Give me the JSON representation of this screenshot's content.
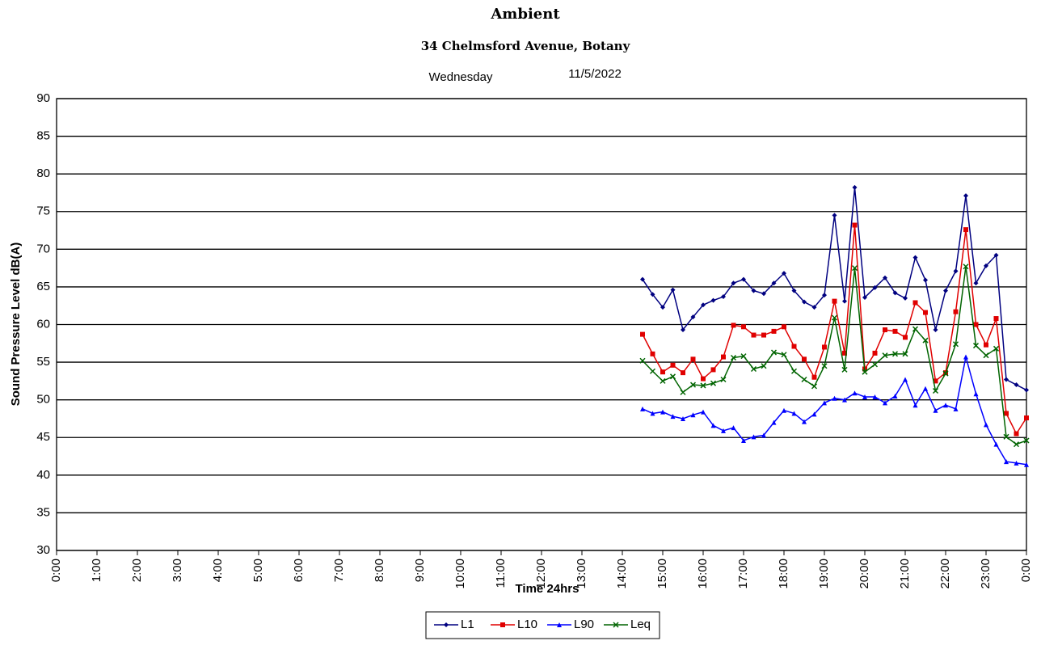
{
  "chart_data": {
    "type": "line",
    "title": "Ambient",
    "subtitle": "34 Chelmsford Avenue, Botany",
    "day": "Wednesday",
    "date": "11/5/2022",
    "xlabel": "Time 24hrs",
    "ylabel": "Sound Pressure Level dB(A)",
    "x": [
      14.5,
      14.75,
      15,
      15.25,
      15.5,
      15.75,
      16,
      16.25,
      16.5,
      16.75,
      17,
      17.25,
      17.5,
      17.75,
      18,
      18.25,
      18.5,
      18.75,
      19,
      19.25,
      19.5,
      19.75,
      20,
      20.25,
      20.5,
      20.75,
      21,
      21.25,
      21.5,
      21.75,
      22,
      22.25,
      22.5,
      22.75,
      23,
      23.25,
      23.5,
      23.75,
      24
    ],
    "series": [
      {
        "name": "L1",
        "color": "#000080",
        "marker": "diamond",
        "values": [
          66,
          64,
          62.3,
          64.6,
          59.3,
          61,
          62.6,
          63.2,
          63.7,
          65.5,
          66,
          64.5,
          64.1,
          65.5,
          66.8,
          64.5,
          63,
          62.3,
          63.9,
          74.5,
          63.1,
          78.2,
          63.6,
          64.9,
          66.2,
          64.2,
          63.5,
          68.9,
          65.9,
          59.3,
          64.5,
          67.1,
          77.1,
          65.5,
          67.8,
          69.2,
          52.7,
          52,
          51.3
        ]
      },
      {
        "name": "L10",
        "color": "#e00000",
        "marker": "square",
        "values": [
          58.7,
          56.1,
          53.7,
          54.6,
          53.6,
          55.4,
          52.8,
          54,
          55.7,
          59.9,
          59.7,
          58.6,
          58.6,
          59.1,
          59.7,
          57.1,
          55.4,
          53,
          57,
          63.1,
          56.2,
          73.2,
          54.1,
          56.2,
          59.3,
          59.1,
          58.3,
          62.9,
          61.6,
          52.5,
          53.6,
          61.7,
          72.6,
          60,
          57.3,
          60.8,
          48.2,
          45.5,
          47.6
        ]
      },
      {
        "name": "L90",
        "color": "#0000ff",
        "marker": "triangle",
        "values": [
          48.8,
          48.2,
          48.4,
          47.8,
          47.5,
          48,
          48.4,
          46.6,
          45.9,
          46.3,
          44.6,
          45.1,
          45.3,
          47,
          48.6,
          48.2,
          47.1,
          48.1,
          49.6,
          50.2,
          50,
          50.9,
          50.4,
          50.4,
          49.6,
          50.5,
          52.7,
          49.3,
          51.5,
          48.6,
          49.3,
          48.8,
          55.7,
          50.8,
          46.7,
          44.1,
          41.8,
          41.6,
          41.4
        ]
      },
      {
        "name": "Leq",
        "color": "#006400",
        "marker": "x",
        "values": [
          55.2,
          53.8,
          52.5,
          53.1,
          51,
          52,
          51.9,
          52.2,
          52.7,
          55.6,
          55.8,
          54.1,
          54.5,
          56.3,
          56,
          53.8,
          52.7,
          51.8,
          54.5,
          60.9,
          54,
          67.5,
          53.7,
          54.7,
          55.9,
          56.1,
          56.1,
          59.4,
          57.9,
          51.2,
          53.5,
          57.4,
          67.7,
          57.2,
          55.9,
          56.8,
          45.1,
          44.1,
          44.6
        ]
      }
    ],
    "xlim": [
      0,
      24
    ],
    "xticks": [
      {
        "value": 0,
        "label": "0:00"
      },
      {
        "value": 1,
        "label": "1:00"
      },
      {
        "value": 2,
        "label": "2:00"
      },
      {
        "value": 3,
        "label": "3:00"
      },
      {
        "value": 4,
        "label": "4:00"
      },
      {
        "value": 5,
        "label": "5:00"
      },
      {
        "value": 6,
        "label": "6:00"
      },
      {
        "value": 7,
        "label": "7:00"
      },
      {
        "value": 8,
        "label": "8:00"
      },
      {
        "value": 9,
        "label": "9:00"
      },
      {
        "value": 10,
        "label": "10:00"
      },
      {
        "value": 11,
        "label": "11:00"
      },
      {
        "value": 12,
        "label": "12:00"
      },
      {
        "value": 13,
        "label": "13:00"
      },
      {
        "value": 14,
        "label": "14:00"
      },
      {
        "value": 15,
        "label": "15:00"
      },
      {
        "value": 16,
        "label": "16:00"
      },
      {
        "value": 17,
        "label": "17:00"
      },
      {
        "value": 18,
        "label": "18:00"
      },
      {
        "value": 19,
        "label": "19:00"
      },
      {
        "value": 20,
        "label": "20:00"
      },
      {
        "value": 21,
        "label": "21:00"
      },
      {
        "value": 22,
        "label": "22:00"
      },
      {
        "value": 23,
        "label": "23:00"
      },
      {
        "value": 24,
        "label": "0:00"
      }
    ],
    "ylim": [
      30,
      90
    ],
    "yticks": [
      30,
      35,
      40,
      45,
      50,
      55,
      60,
      65,
      70,
      75,
      80,
      85,
      90
    ],
    "grid": true,
    "legend": "bottom"
  }
}
